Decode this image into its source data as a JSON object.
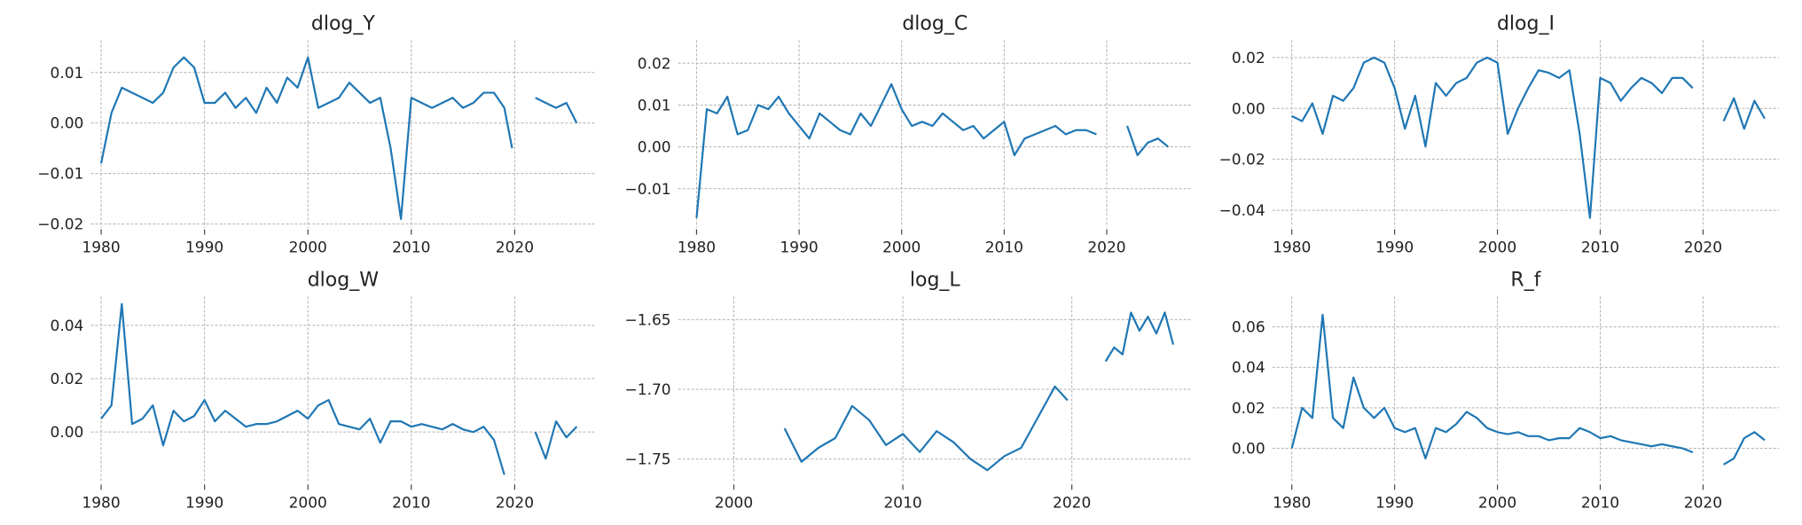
{
  "chart_data": [
    {
      "type": "line",
      "title": "dlog_Y",
      "color": "#1f77b4",
      "grid": true,
      "x": [
        1980,
        1981,
        1982,
        1983,
        1984,
        1985,
        1986,
        1987,
        1988,
        1989,
        1990,
        1991,
        1992,
        1993,
        1994,
        1995,
        1996,
        1997,
        1998,
        1999,
        2000,
        2001,
        2002,
        2003,
        2004,
        2005,
        2006,
        2007,
        2008,
        2009,
        2010,
        2011,
        2012,
        2013,
        2014,
        2015,
        2016,
        2017,
        2018,
        2019,
        2019.75,
        2021,
        2022,
        2023,
        2024,
        2025,
        2026
      ],
      "values": [
        -0.008,
        0.002,
        0.007,
        0.006,
        0.005,
        0.004,
        0.006,
        0.011,
        0.013,
        0.011,
        0.004,
        0.004,
        0.006,
        0.003,
        0.005,
        0.002,
        0.007,
        0.004,
        0.009,
        0.007,
        0.013,
        0.003,
        0.004,
        0.005,
        0.008,
        0.006,
        0.004,
        0.005,
        -0.005,
        -0.019,
        0.005,
        0.004,
        0.003,
        0.004,
        0.005,
        0.003,
        0.004,
        0.006,
        0.006,
        0.003,
        -0.005,
        null,
        0.005,
        0.004,
        0.003,
        0.004,
        0.0
      ],
      "xlim": [
        1979,
        2027.8
      ],
      "xticks": [
        1980,
        1990,
        2000,
        2010,
        2020
      ],
      "ylim": [
        -0.0207,
        0.0164
      ],
      "yticks": [
        {
          "value": -0.02,
          "label": "−0.02"
        },
        {
          "value": -0.01,
          "label": "−0.01"
        },
        {
          "value": 0,
          "label": "0.00"
        },
        0.01
      ]
    },
    {
      "type": "line",
      "title": "dlog_C",
      "color": "#1f77b4",
      "grid": true,
      "x": [
        1980,
        1981,
        1982,
        1983,
        1984,
        1985,
        1986,
        1987,
        1988,
        1989,
        1990,
        1991,
        1992,
        1993,
        1994,
        1995,
        1996,
        1997,
        1998,
        1999,
        2000,
        2001,
        2002,
        2003,
        2004,
        2005,
        2006,
        2007,
        2008,
        2009,
        2010,
        2011,
        2012,
        2013,
        2014,
        2015,
        2016,
        2017,
        2018,
        2019,
        2021,
        2022,
        2023,
        2024,
        2025,
        2026
      ],
      "values": [
        -0.017,
        0.009,
        0.008,
        0.012,
        0.003,
        0.004,
        0.01,
        0.009,
        0.012,
        0.008,
        0.005,
        0.002,
        0.008,
        0.006,
        0.004,
        0.003,
        0.008,
        0.005,
        0.01,
        0.015,
        0.009,
        0.005,
        0.006,
        0.005,
        0.008,
        0.006,
        0.004,
        0.005,
        0.002,
        0.004,
        0.006,
        -0.002,
        0.002,
        0.003,
        0.004,
        0.005,
        0.003,
        0.004,
        0.004,
        0.003,
        null,
        0.005,
        -0.002,
        0.001,
        0.002,
        0.0
      ],
      "xlim": [
        1978.2,
        2028.3
      ],
      "xticks": [
        1980,
        1990,
        2000,
        2010,
        2020
      ],
      "ylim": [
        -0.0193,
        0.0255
      ],
      "yticks": [
        {
          "value": -0.01,
          "label": "−0.01"
        },
        {
          "value": 0,
          "label": "0.00"
        },
        0.01,
        0.02
      ]
    },
    {
      "type": "line",
      "title": "dlog_I",
      "color": "#1f77b4",
      "grid": true,
      "x": [
        1980,
        1981,
        1982,
        1983,
        1984,
        1985,
        1986,
        1987,
        1988,
        1989,
        1990,
        1991,
        1992,
        1993,
        1994,
        1995,
        1996,
        1997,
        1998,
        1999,
        2000,
        2001,
        2002,
        2003,
        2004,
        2005,
        2006,
        2007,
        2008,
        2009,
        2010,
        2011,
        2012,
        2013,
        2014,
        2015,
        2016,
        2017,
        2018,
        2019,
        2021,
        2022,
        2023,
        2024,
        2025,
        2026
      ],
      "values": [
        -0.003,
        -0.005,
        0.002,
        -0.01,
        0.005,
        0.003,
        0.008,
        0.018,
        0.02,
        0.018,
        0.008,
        -0.008,
        0.005,
        -0.015,
        0.01,
        0.005,
        0.01,
        0.012,
        0.018,
        0.02,
        0.018,
        -0.01,
        0.0,
        0.008,
        0.015,
        0.014,
        0.012,
        0.015,
        -0.01,
        -0.043,
        0.012,
        0.01,
        0.003,
        0.008,
        0.012,
        0.01,
        0.006,
        0.012,
        0.012,
        0.008,
        null,
        -0.005,
        0.004,
        -0.008,
        0.003,
        -0.004
      ],
      "xlim": [
        1978.1,
        2027.4
      ],
      "xticks": [
        1980,
        1990,
        2000,
        2010,
        2020
      ],
      "ylim": [
        -0.0468,
        0.0268
      ],
      "yticks": [
        {
          "value": -0.04,
          "label": "−0.04"
        },
        {
          "value": -0.02,
          "label": "−0.02"
        },
        {
          "value": 0,
          "label": "0.00"
        },
        0.02
      ]
    },
    {
      "type": "line",
      "title": "dlog_W",
      "color": "#1f77b4",
      "grid": true,
      "x": [
        1980,
        1981,
        1982,
        1983,
        1984,
        1985,
        1986,
        1987,
        1988,
        1989,
        1990,
        1991,
        1992,
        1993,
        1994,
        1995,
        1996,
        1997,
        1998,
        1999,
        2000,
        2001,
        2002,
        2003,
        2004,
        2005,
        2006,
        2007,
        2008,
        2009,
        2010,
        2011,
        2012,
        2013,
        2014,
        2015,
        2016,
        2017,
        2018,
        2019,
        2021,
        2022,
        2023,
        2024,
        2025,
        2026
      ],
      "values": [
        0.005,
        0.01,
        0.048,
        0.003,
        0.005,
        0.01,
        -0.005,
        0.008,
        0.004,
        0.006,
        0.012,
        0.004,
        0.008,
        0.005,
        0.002,
        0.003,
        0.003,
        0.004,
        0.006,
        0.008,
        0.005,
        0.01,
        0.012,
        0.003,
        0.002,
        0.001,
        0.005,
        -0.004,
        0.004,
        0.004,
        0.002,
        0.003,
        0.002,
        0.001,
        0.003,
        0.001,
        0.0,
        0.002,
        -0.003,
        -0.016,
        null,
        0.0,
        -0.01,
        0.004,
        -0.002,
        0.002
      ],
      "xlim": [
        1979,
        2027.8
      ],
      "xticks": [
        1980,
        1990,
        2000,
        2010,
        2020
      ],
      "ylim": [
        -0.019,
        0.0508
      ],
      "yticks": [
        {
          "value": 0,
          "label": "0.00"
        },
        0.02,
        0.04
      ]
    },
    {
      "type": "line",
      "title": "log_L",
      "color": "#1f77b4",
      "grid": true,
      "x": [
        2003,
        2004,
        2005,
        2006,
        2007,
        2008,
        2009,
        2010,
        2011,
        2012,
        2013,
        2014,
        2015,
        2016,
        2017,
        2018,
        2019,
        2019.75,
        2021,
        2022,
        2022.5,
        2023,
        2023.5,
        2024,
        2024.5,
        2025,
        2025.5,
        2026
      ],
      "values": [
        -1.728,
        -1.752,
        -1.742,
        -1.735,
        -1.712,
        -1.722,
        -1.74,
        -1.732,
        -1.745,
        -1.73,
        -1.738,
        -1.75,
        -1.758,
        -1.748,
        -1.742,
        -1.72,
        -1.698,
        -1.708,
        null,
        -1.68,
        -1.67,
        -1.675,
        -1.645,
        -1.658,
        -1.648,
        -1.66,
        -1.645,
        -1.668
      ],
      "xlim": [
        1996.7,
        2027.1
      ],
      "xticks": [
        2000,
        2010,
        2020
      ],
      "ylim": [
        -1.767,
        -1.6335
      ],
      "yticks": [
        {
          "value": -1.75,
          "label": "−1.75"
        },
        {
          "value": -1.7,
          "label": "−1.70"
        },
        {
          "value": -1.65,
          "label": "−1.65"
        }
      ]
    },
    {
      "type": "line",
      "title": "R_f",
      "color": "#1f77b4",
      "grid": true,
      "x": [
        1980,
        1981,
        1982,
        1983,
        1984,
        1985,
        1986,
        1987,
        1988,
        1989,
        1990,
        1991,
        1992,
        1993,
        1994,
        1995,
        1996,
        1997,
        1998,
        1999,
        2000,
        2001,
        2002,
        2003,
        2004,
        2005,
        2006,
        2007,
        2008,
        2009,
        2010,
        2011,
        2012,
        2013,
        2014,
        2015,
        2016,
        2017,
        2018,
        2019,
        2021,
        2022,
        2023,
        2024,
        2025,
        2026
      ],
      "values": [
        0.0,
        0.02,
        0.015,
        0.066,
        0.015,
        0.01,
        0.035,
        0.02,
        0.015,
        0.02,
        0.01,
        0.008,
        0.01,
        -0.005,
        0.01,
        0.008,
        0.012,
        0.018,
        0.015,
        0.01,
        0.008,
        0.007,
        0.008,
        0.006,
        0.006,
        0.004,
        0.005,
        0.005,
        0.01,
        0.008,
        0.005,
        0.006,
        0.004,
        0.003,
        0.002,
        0.001,
        0.002,
        0.001,
        0.0,
        -0.002,
        null,
        -0.008,
        -0.005,
        0.005,
        0.008,
        0.004
      ],
      "xlim": [
        1978.1,
        2027.4
      ],
      "xticks": [
        1980,
        1990,
        2000,
        2010,
        2020
      ],
      "ylim": [
        -0.017,
        0.075
      ],
      "yticks": [
        {
          "value": 0,
          "label": "0.00"
        },
        0.02,
        0.04,
        0.06
      ]
    }
  ]
}
